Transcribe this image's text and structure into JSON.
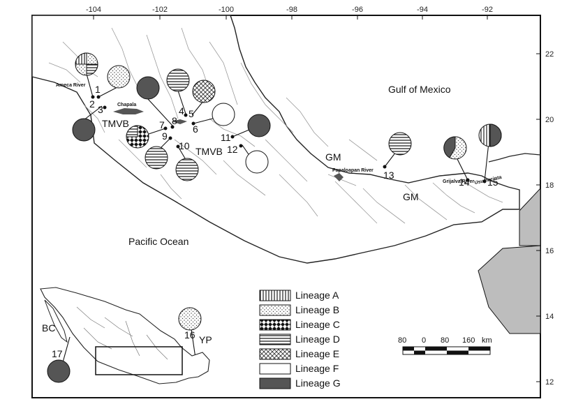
{
  "axes": {
    "lon_ticks": [
      "-104",
      "-102",
      "-100",
      "-98",
      "-96",
      "-94",
      "-92"
    ],
    "lat_ticks": [
      "22",
      "20",
      "18",
      "16",
      "14",
      "12"
    ]
  },
  "labels": {
    "gulf": "Gulf of Mexico",
    "pacific": "Pacific Ocean",
    "tmvb_west": "TMVB",
    "tmvb_east": "TMVB",
    "gm_north": "GM",
    "gm_south": "GM",
    "yp": "YP",
    "bc": "BC",
    "ameca_river": "Ameca River",
    "chapala": "Chapala",
    "papaloapan_river": "Papaloapan River",
    "grijalva_river": "Grijalva River",
    "usumacinta_river": "Usumacinta"
  },
  "sites": {
    "s1": "1",
    "s2": "2",
    "s3": "3",
    "s4": "4",
    "s5": "5",
    "s6": "6",
    "s7": "7",
    "s8": "8",
    "s9": "9",
    "s10": "10",
    "s11": "11",
    "s12": "12",
    "s13": "13",
    "s14": "14",
    "s15": "15",
    "s16": "16",
    "s17": "17"
  },
  "legend": {
    "a": "Lineage A",
    "b": "Lineage B",
    "c": "Lineage C",
    "d": "Lineage D",
    "e": "Lineage E",
    "f": "Lineage F",
    "g": "Lineage G"
  },
  "scale": {
    "t80a": "80",
    "t0": "0",
    "t80b": "80",
    "t160": "160",
    "unit": "km"
  },
  "colors": {
    "lineage_g": "#555555",
    "land": "#ffffff",
    "other_land": "#bdbdbd",
    "rivers": "#9a9a9a"
  }
}
